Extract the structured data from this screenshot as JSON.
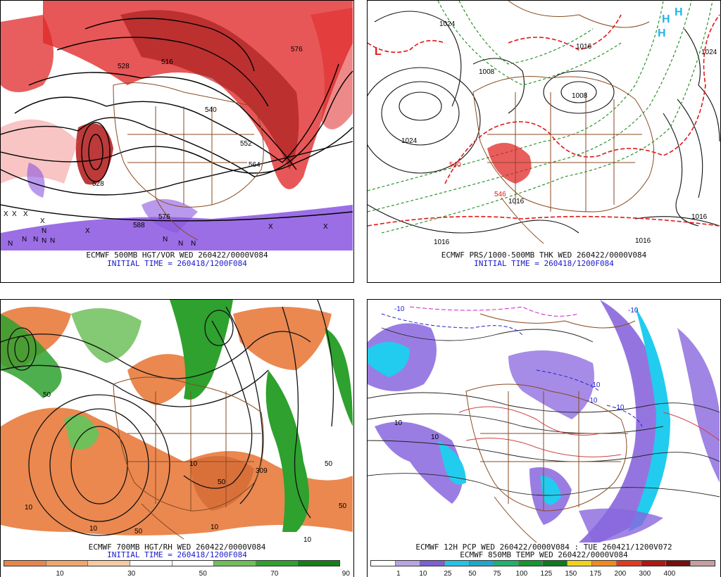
{
  "panels": {
    "p500": {
      "caption": "ECMWF 500MB HGT/VOR WED 260422/0000V084",
      "initial": "INITIAL TIME = 260418/1200F084",
      "labels": [
        "576",
        "528",
        "516",
        "528",
        "540",
        "552",
        "564",
        "588",
        "576"
      ],
      "marks": [
        "X",
        "X",
        "X",
        "N",
        "N",
        "N",
        "N",
        "X",
        "N",
        "N",
        "N",
        "X",
        "X",
        "X",
        "N",
        "N"
      ]
    },
    "pres": {
      "caption": "ECMWF PRS/1000-500MB THK WED 260422/0000V084",
      "initial": "INITIAL TIME = 260418/1200F084",
      "labels": [
        "1024",
        "1008",
        "1016",
        "1008",
        "1024",
        "540",
        "546",
        "1016",
        "1016",
        "1024",
        "1016",
        "1016"
      ],
      "marks": [
        "H",
        "H",
        "H",
        "L"
      ]
    },
    "p700": {
      "caption": "ECMWF 700MB HGT/RH WED 260422/0000V084",
      "initial": "INITIAL TIME = 260418/1200F084",
      "labels": [
        "50",
        "10",
        "10",
        "50",
        "50",
        "10",
        "10",
        "50",
        "10",
        "309",
        "50"
      ],
      "legend": {
        "colors": [
          "#e8864a",
          "#f2a66a",
          "#f7cba0",
          "#ffffff",
          "#ffffff",
          "#6fbf5a",
          "#2ea12e",
          "#15801a"
        ],
        "ticks": [
          "10",
          "30",
          "50",
          "70",
          "90"
        ]
      }
    },
    "pcp": {
      "caption": "ECMWF 12H PCP WED 260422/0000V084 : TUE 260421/1200V072",
      "caption2": "ECMWF 850MB TEMP WED 260422/0000V084",
      "labels": [
        "-10",
        "-10",
        "-10",
        "-10",
        "-10",
        "10",
        "10"
      ],
      "legend": {
        "colors": [
          "#ffffff",
          "#b9a3e6",
          "#7d5fd6",
          "#23c4e8",
          "#1ea7c9",
          "#1db36a",
          "#12992b",
          "#0e7a1e",
          "#f0d21c",
          "#f08a1c",
          "#e43a1c",
          "#b01810",
          "#7a0e0e",
          "#c4a0a0"
        ],
        "ticks": [
          "1",
          "10",
          "25",
          "50",
          "75",
          "100",
          "125",
          "150",
          "175",
          "200",
          "300",
          "400"
        ]
      }
    }
  },
  "colors": {
    "vorticity_red": "#e02828",
    "vorticity_purple": "#8a55e0",
    "thickness_red": "#e01818",
    "thickness_green": "#1a8a1a",
    "rh_orange": "#ea8850",
    "rh_green": "#2ea12e",
    "precip_purple": "#8866dd",
    "precip_cyan": "#22ccee",
    "borders_brown": "#8a4a20"
  }
}
